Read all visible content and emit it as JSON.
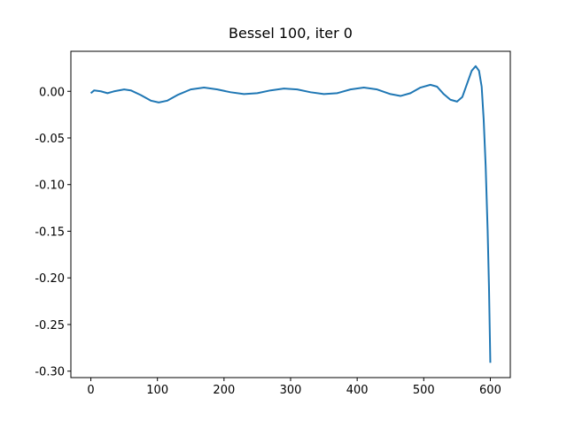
{
  "chart_data": {
    "type": "line",
    "title": "Bessel 100, iter 0",
    "x": [
      0,
      5,
      15,
      25,
      35,
      50,
      60,
      75,
      90,
      102,
      115,
      130,
      150,
      170,
      190,
      210,
      230,
      250,
      270,
      290,
      310,
      330,
      350,
      370,
      390,
      410,
      430,
      450,
      465,
      480,
      495,
      510,
      520,
      530,
      540,
      550,
      558,
      565,
      572,
      578,
      583,
      587,
      590,
      593,
      596,
      598,
      600
    ],
    "values": [
      -0.002,
      0.001,
      0.0,
      -0.002,
      0.0,
      0.002,
      0.001,
      -0.004,
      -0.01,
      -0.012,
      -0.01,
      -0.004,
      0.002,
      0.004,
      0.002,
      -0.001,
      -0.003,
      -0.002,
      0.001,
      0.003,
      0.002,
      -0.001,
      -0.003,
      -0.002,
      0.002,
      0.004,
      0.002,
      -0.003,
      -0.005,
      -0.002,
      0.004,
      0.007,
      0.005,
      -0.003,
      -0.009,
      -0.011,
      -0.006,
      0.008,
      0.022,
      0.027,
      0.022,
      0.005,
      -0.03,
      -0.08,
      -0.15,
      -0.21,
      -0.291
    ],
    "color": "#1f77b4",
    "xlim": [
      -30,
      630
    ],
    "xticks": [
      0,
      100,
      200,
      300,
      400,
      500,
      600
    ],
    "ylim": [
      -0.3069,
      0.0429
    ],
    "yticks": [
      {
        "value": -0.3,
        "label": "-0.30"
      },
      {
        "value": -0.25,
        "label": "-0.25"
      },
      {
        "value": -0.2,
        "label": "-0.20"
      },
      {
        "value": -0.15,
        "label": "-0.15"
      },
      {
        "value": -0.1,
        "label": "-0.10"
      },
      {
        "value": -0.05,
        "label": "-0.05"
      },
      {
        "value": 0,
        "label": "0.00"
      }
    ],
    "grid": false
  }
}
